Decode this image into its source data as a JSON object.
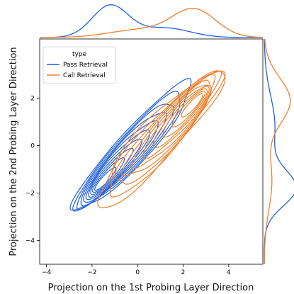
{
  "chart_data": {
    "type": "kde-contour-joint",
    "xlabel": "Projection on the 1st Probing Layer Direction",
    "ylabel": "Projection on the 2nd Probing Layer Direction",
    "xlim": [
      -4.3,
      5.5
    ],
    "ylim": [
      -5.0,
      4.5
    ],
    "xticks": [
      -4,
      -2,
      0,
      2,
      4
    ],
    "yticks": [
      -4,
      -2,
      0,
      2
    ],
    "xtick_labels": [
      "−4",
      "−2",
      "0",
      "2",
      "4"
    ],
    "ytick_labels": [
      "−4",
      "−2",
      "0",
      "2"
    ],
    "grid": false,
    "legend": {
      "title": "type",
      "position": "top-left"
    },
    "series": [
      {
        "name": "Pass Retrieval",
        "color": "#1f5fe0",
        "center": [
          -1.5,
          -1.4
        ],
        "contour_levels": 10,
        "approx_x_range": [
          -3.0,
          3.3
        ],
        "approx_y_range": [
          -2.8,
          2.7
        ],
        "marginal_x_peak": -1.2,
        "marginal_y_peak": -1.8
      },
      {
        "name": "Call Retrieval",
        "color": "#f07f28",
        "center": [
          2.5,
          1.8
        ],
        "contour_levels": 10,
        "approx_x_range": [
          -2.6,
          4.2
        ],
        "approx_y_range": [
          -3.9,
          3.2
        ],
        "marginal_x_peak": 2.5,
        "marginal_y_peak": 1.9
      }
    ]
  }
}
